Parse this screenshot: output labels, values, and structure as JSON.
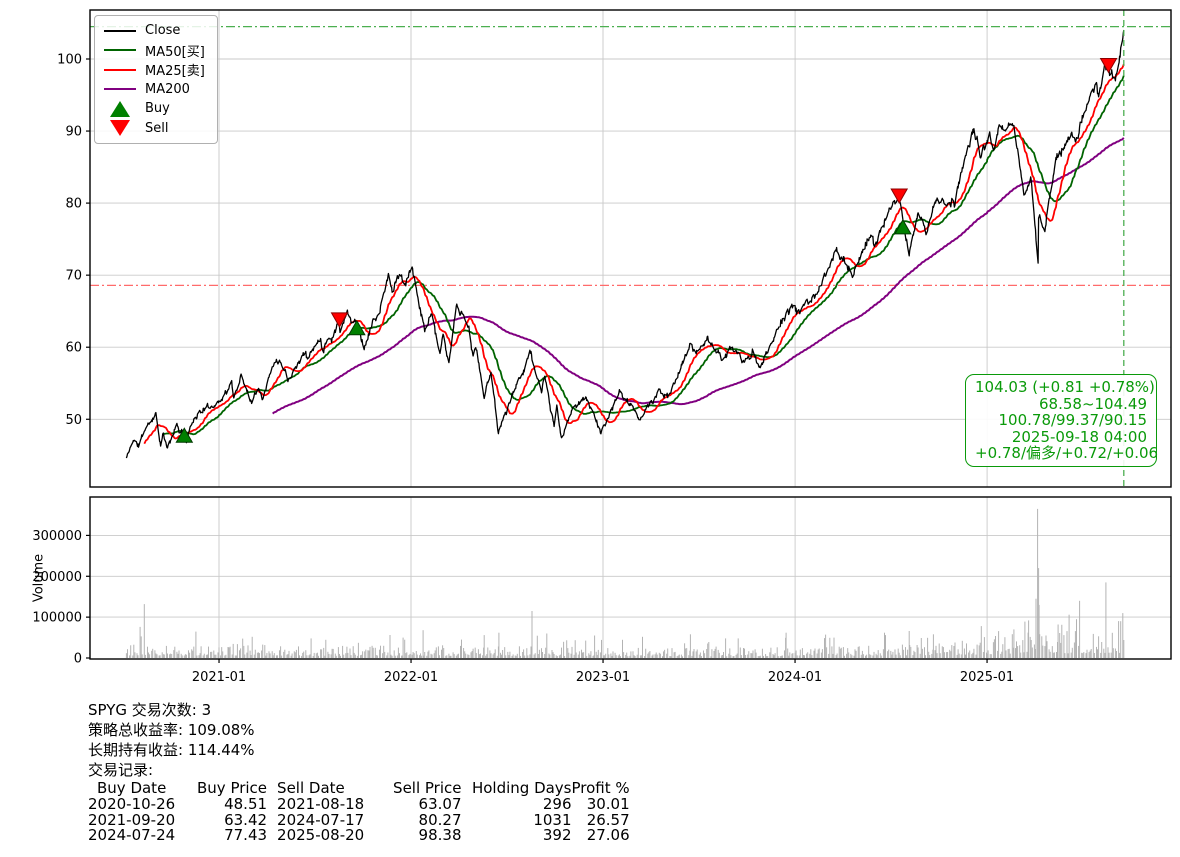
{
  "chart_data": [
    {
      "type": "line",
      "name": "price-panel",
      "x_range": [
        2020.328,
        2025.958
      ],
      "ylim": [
        40.6,
        106.8
      ],
      "yticks": [
        50,
        60,
        70,
        80,
        90,
        100
      ],
      "xticks": [
        {
          "label": "2021-01",
          "date": "2021-01-01"
        },
        {
          "label": "2022-01",
          "date": "2022-01-01"
        },
        {
          "label": "2023-01",
          "date": "2023-01-01"
        },
        {
          "label": "2024-01",
          "date": "2024-01-01"
        },
        {
          "label": "2025-01",
          "date": "2025-01-01"
        }
      ],
      "grid": true,
      "legend": [
        {
          "label": "Close",
          "type": "line",
          "color": "#000000"
        },
        {
          "label": "MA50[买]",
          "type": "line",
          "color": "#006400"
        },
        {
          "label": "MA25[卖]",
          "type": "line",
          "color": "#ff0000"
        },
        {
          "label": "MA200",
          "type": "line",
          "color": "#800080"
        },
        {
          "label": "Buy",
          "type": "marker-up",
          "color": "#008000"
        },
        {
          "label": "Sell",
          "type": "marker-down",
          "color": "#ff0000"
        }
      ],
      "series": [
        {
          "name": "Close",
          "color": "#000000",
          "width": 1.3,
          "anchors": [
            [
              "2020-07-08",
              44.6
            ],
            [
              "2020-07-21",
              47.2
            ],
            [
              "2020-07-31",
              46.3
            ],
            [
              "2020-08-12",
              48.6
            ],
            [
              "2020-09-02",
              50.8
            ],
            [
              "2020-09-11",
              46.4
            ],
            [
              "2020-09-16",
              47.9
            ],
            [
              "2020-09-24",
              45.9
            ],
            [
              "2020-10-12",
              49.3
            ],
            [
              "2020-10-19",
              48.0
            ],
            [
              "2020-10-26",
              48.51
            ],
            [
              "2020-10-30",
              46.9
            ],
            [
              "2020-11-09",
              49.6
            ],
            [
              "2020-11-27",
              51.2
            ],
            [
              "2020-12-31",
              52.4
            ],
            [
              "2021-01-25",
              54.9
            ],
            [
              "2021-01-29",
              52.9
            ],
            [
              "2021-02-12",
              56.1
            ],
            [
              "2021-03-04",
              52.4
            ],
            [
              "2021-03-17",
              54.6
            ],
            [
              "2021-03-25",
              53.0
            ],
            [
              "2021-04-16",
              58.1
            ],
            [
              "2021-04-30",
              58.0
            ],
            [
              "2021-05-12",
              55.6
            ],
            [
              "2021-06-14",
              59.4
            ],
            [
              "2021-06-18",
              58.4
            ],
            [
              "2021-07-12",
              61.3
            ],
            [
              "2021-07-19",
              59.6
            ],
            [
              "2021-07-26",
              61.5
            ],
            [
              "2021-08-03",
              61.0
            ],
            [
              "2021-08-16",
              63.6
            ],
            [
              "2021-08-18",
              63.07
            ],
            [
              "2021-08-19",
              62.4
            ],
            [
              "2021-09-02",
              64.9
            ],
            [
              "2021-09-10",
              63.6
            ],
            [
              "2021-09-20",
              63.42
            ],
            [
              "2021-10-04",
              59.9
            ],
            [
              "2021-10-22",
              63.8
            ],
            [
              "2021-11-01",
              64.5
            ],
            [
              "2021-11-19",
              70.0
            ],
            [
              "2021-11-26",
              67.8
            ],
            [
              "2021-12-10",
              70.2
            ],
            [
              "2021-12-20",
              68.3
            ],
            [
              "2022-01-03",
              71.3
            ],
            [
              "2022-01-27",
              62.1
            ],
            [
              "2022-02-09",
              65.0
            ],
            [
              "2022-02-24",
              58.9
            ],
            [
              "2022-03-03",
              61.6
            ],
            [
              "2022-03-14",
              57.6
            ],
            [
              "2022-03-29",
              65.9
            ],
            [
              "2022-04-21",
              62.6
            ],
            [
              "2022-04-29",
              58.5
            ],
            [
              "2022-05-04",
              60.2
            ],
            [
              "2022-05-20",
              53.1
            ],
            [
              "2022-06-02",
              56.6
            ],
            [
              "2022-06-16",
              48.3
            ],
            [
              "2022-07-08",
              52.5
            ],
            [
              "2022-08-16",
              59.3
            ],
            [
              "2022-09-06",
              53.6
            ],
            [
              "2022-09-12",
              56.1
            ],
            [
              "2022-09-30",
              48.9
            ],
            [
              "2022-10-05",
              51.5
            ],
            [
              "2022-10-14",
              47.3
            ],
            [
              "2022-11-01",
              51.0
            ],
            [
              "2022-11-30",
              53.2
            ],
            [
              "2022-12-28",
              48.1
            ],
            [
              "2023-02-02",
              53.8
            ],
            [
              "2023-03-13",
              50.1
            ],
            [
              "2023-04-18",
              53.9
            ],
            [
              "2023-05-04",
              53.0
            ],
            [
              "2023-06-16",
              60.3
            ],
            [
              "2023-06-26",
              59.2
            ],
            [
              "2023-07-19",
              61.3
            ],
            [
              "2023-08-18",
              58.0
            ],
            [
              "2023-09-01",
              60.3
            ],
            [
              "2023-09-27",
              57.8
            ],
            [
              "2023-10-12",
              59.4
            ],
            [
              "2023-10-27",
              57.0
            ],
            [
              "2023-12-01",
              63.0
            ],
            [
              "2023-12-28",
              65.8
            ],
            [
              "2024-01-05",
              64.8
            ],
            [
              "2024-02-13",
              67.5
            ],
            [
              "2024-03-21",
              73.6
            ],
            [
              "2024-04-19",
              70.1
            ],
            [
              "2024-05-23",
              75.6
            ],
            [
              "2024-05-31",
              74.2
            ],
            [
              "2024-06-28",
              78.8
            ],
            [
              "2024-07-10",
              80.0
            ],
            [
              "2024-07-16",
              80.4
            ],
            [
              "2024-07-17",
              80.27
            ],
            [
              "2024-07-24",
              77.43
            ],
            [
              "2024-08-05",
              73.0
            ],
            [
              "2024-08-22",
              79.0
            ],
            [
              "2024-09-06",
              75.9
            ],
            [
              "2024-09-26",
              80.5
            ],
            [
              "2024-10-31",
              79.9
            ],
            [
              "2024-11-11",
              84.3
            ],
            [
              "2024-12-06",
              90.4
            ],
            [
              "2024-12-19",
              86.4
            ],
            [
              "2025-01-06",
              89.3
            ],
            [
              "2025-01-13",
              86.6
            ],
            [
              "2025-01-23",
              90.1
            ],
            [
              "2025-02-19",
              91.3
            ],
            [
              "2025-03-13",
              80.9
            ],
            [
              "2025-03-25",
              83.9
            ],
            [
              "2025-04-04",
              75.1
            ],
            [
              "2025-04-08",
              71.9
            ],
            [
              "2025-04-09",
              78.1
            ],
            [
              "2025-04-21",
              76.3
            ],
            [
              "2025-05-02",
              81.6
            ],
            [
              "2025-05-12",
              85.9
            ],
            [
              "2025-06-10",
              89.4
            ],
            [
              "2025-06-20",
              88.9
            ],
            [
              "2025-07-03",
              92.1
            ],
            [
              "2025-07-28",
              96.9
            ],
            [
              "2025-08-01",
              94.4
            ],
            [
              "2025-08-13",
              99.1
            ],
            [
              "2025-08-20",
              98.38
            ],
            [
              "2025-09-02",
              96.9
            ],
            [
              "2025-09-10",
              100.6
            ],
            [
              "2025-09-18",
              104.03
            ]
          ]
        },
        {
          "name": "MA25[卖]",
          "color": "#ff0000",
          "width": 1.8,
          "sma_window": 25
        },
        {
          "name": "MA50[买]",
          "color": "#006400",
          "width": 1.8,
          "sma_window": 50
        },
        {
          "name": "MA200",
          "color": "#800080",
          "width": 2.0,
          "sma_window": 200
        }
      ],
      "hlines": [
        {
          "y": 104.49,
          "color": "#4caf50",
          "style": "dashdot"
        },
        {
          "y": 68.58,
          "color": "#ff6b6b",
          "style": "dashdot"
        }
      ],
      "vline": {
        "date": "2025-09-18",
        "color": "#4caf50",
        "style": "dashed"
      },
      "trades": [
        {
          "buy_date": "2020-10-26",
          "buy_price": "48.51",
          "sell_date": "2021-08-18",
          "sell_price": "63.07",
          "holding_days": "296",
          "profit_pct": "30.01"
        },
        {
          "buy_date": "2021-09-20",
          "buy_price": "63.42",
          "sell_date": "2024-07-17",
          "sell_price": "80.27",
          "holding_days": "1031",
          "profit_pct": "26.57"
        },
        {
          "buy_date": "2024-07-24",
          "buy_price": "77.43",
          "sell_date": "2025-08-20",
          "sell_price": "98.38",
          "holding_days": "392",
          "profit_pct": "27.06"
        }
      ],
      "marker_colors": {
        "buy_fill": "#008000",
        "buy_edge": "#013801",
        "sell_fill": "#ff0000",
        "sell_edge": "#8b0000"
      },
      "annotation": {
        "color": "#0a9a0a",
        "lines": [
          "104.03 (+0.81 +0.78%)",
          "68.58~104.49",
          "100.78/99.37/90.15",
          "2025-09-18 04:00",
          "+0.78/偏多/+0.72/+0.06"
        ]
      },
      "noise": {
        "seed": 11,
        "amp": 0.011,
        "amp_fast": 0.006,
        "smooth": 0.5
      }
    },
    {
      "type": "bar",
      "name": "volume-panel",
      "ylabel": "Volume",
      "ylim": [
        0,
        394000
      ],
      "yticks": [
        0,
        100000,
        200000,
        300000
      ],
      "bar_color": "#b3b3b3",
      "envelope": [
        [
          "2020-07-08",
          20000
        ],
        [
          "2021-01-01",
          21000
        ],
        [
          "2021-07-01",
          16000
        ],
        [
          "2022-01-01",
          18000
        ],
        [
          "2022-07-01",
          17000
        ],
        [
          "2023-01-01",
          15000
        ],
        [
          "2023-07-01",
          14000
        ],
        [
          "2024-01-01",
          16000
        ],
        [
          "2024-07-01",
          19000
        ],
        [
          "2024-11-01",
          24000
        ],
        [
          "2025-01-01",
          30000
        ],
        [
          "2025-03-15",
          40000
        ],
        [
          "2025-04-15",
          48000
        ],
        [
          "2025-06-01",
          38000
        ],
        [
          "2025-09-18",
          42000
        ]
      ],
      "spikes": {
        "2020-08-03": 76000,
        "2020-08-11": 132000,
        "2021-03-05": 52000,
        "2021-06-25": 48000,
        "2021-12-17": 50000,
        "2022-01-24": 68000,
        "2022-05-20": 56000,
        "2022-06-17": 62000,
        "2022-08-19": 115000,
        "2022-09-16": 60000,
        "2022-12-16": 55000,
        "2023-03-17": 52000,
        "2023-06-16": 58000,
        "2023-09-15": 48000,
        "2023-12-15": 62000,
        "2024-03-15": 50000,
        "2024-06-21": 56000,
        "2024-08-05": 66000,
        "2024-09-20": 58000,
        "2024-12-20": 78000,
        "2025-02-21": 70000,
        "2025-03-21": 92000,
        "2025-04-04": 145000,
        "2025-04-07": 365000,
        "2025-04-09": 220000,
        "2025-04-10": 130000,
        "2025-05-16": 82000,
        "2025-06-20": 95000,
        "2025-06-26": 140000,
        "2025-08-15": 185000,
        "2025-09-12": 90000,
        "2025-09-16": 110000
      },
      "noise_seed": 77
    }
  ],
  "stats": {
    "lines": [
      "SPYG 交易次数: 3",
      "策略总收益率: 109.08%",
      "长期持有收益: 114.44%",
      "交易记录:"
    ],
    "table_header": [
      "Buy Date",
      "Buy Price",
      "Sell Date",
      "Sell Price",
      "Holding Days",
      "Profit %"
    ]
  }
}
